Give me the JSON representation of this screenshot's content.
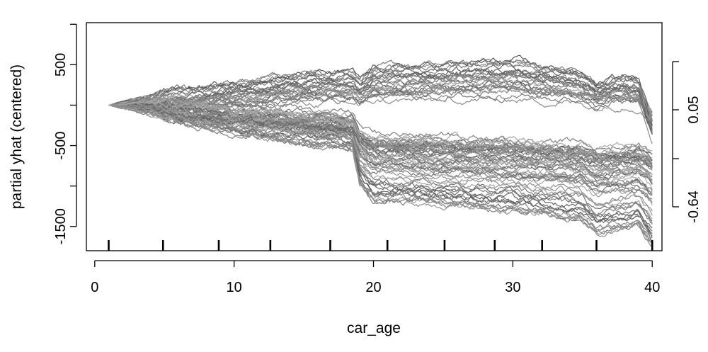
{
  "chart_data": {
    "type": "line",
    "title": "",
    "xlabel": "car_age",
    "ylabel": "partial yhat (centered)",
    "xlim": [
      -0.6,
      40.7
    ],
    "ylim": [
      -1800,
      1020
    ],
    "x_ticks": [
      0,
      10,
      20,
      30,
      40
    ],
    "y_ticks": [
      -1500,
      -500,
      500
    ],
    "y_ticks_unlabeled": [
      -1000,
      0,
      1000
    ],
    "right_axis": {
      "ticks": [
        -0.64,
        -0.3,
        0.05,
        0.4
      ],
      "tick_labels": [
        "-0.64",
        "",
        "0.05",
        ""
      ],
      "note": "secondary axis on the right, in units of the original prediction"
    },
    "rug_x": [
      1,
      4.9,
      8.9,
      12.6,
      16.9,
      21,
      25.1,
      28.7,
      32.1,
      36,
      40
    ],
    "curve_count": 90,
    "groups": [
      {
        "group": "upper",
        "share_of_curves": 0.3,
        "x": [
          1,
          4,
          7,
          10,
          13,
          16,
          18.5,
          19,
          20,
          25,
          30,
          33,
          35,
          36,
          38,
          39,
          40
        ],
        "y": [
          0,
          40,
          100,
          170,
          230,
          270,
          280,
          200,
          330,
          380,
          420,
          330,
          270,
          150,
          250,
          200,
          -300
        ]
      },
      {
        "group": "lower",
        "share_of_curves": 0.7,
        "x": [
          1,
          4,
          7,
          10,
          13,
          16,
          18.5,
          19,
          20,
          25,
          30,
          33,
          35,
          36,
          38,
          39,
          40
        ],
        "y": [
          0,
          -30,
          -150,
          -250,
          -330,
          -410,
          -450,
          -850,
          -1050,
          -1100,
          -1180,
          -1240,
          -1300,
          -1450,
          -1400,
          -1350,
          -1600
        ]
      }
    ],
    "grid": false,
    "legend": "none",
    "colors": {
      "lines": "#555555",
      "axes": "#000000",
      "background": "#ffffff"
    }
  }
}
